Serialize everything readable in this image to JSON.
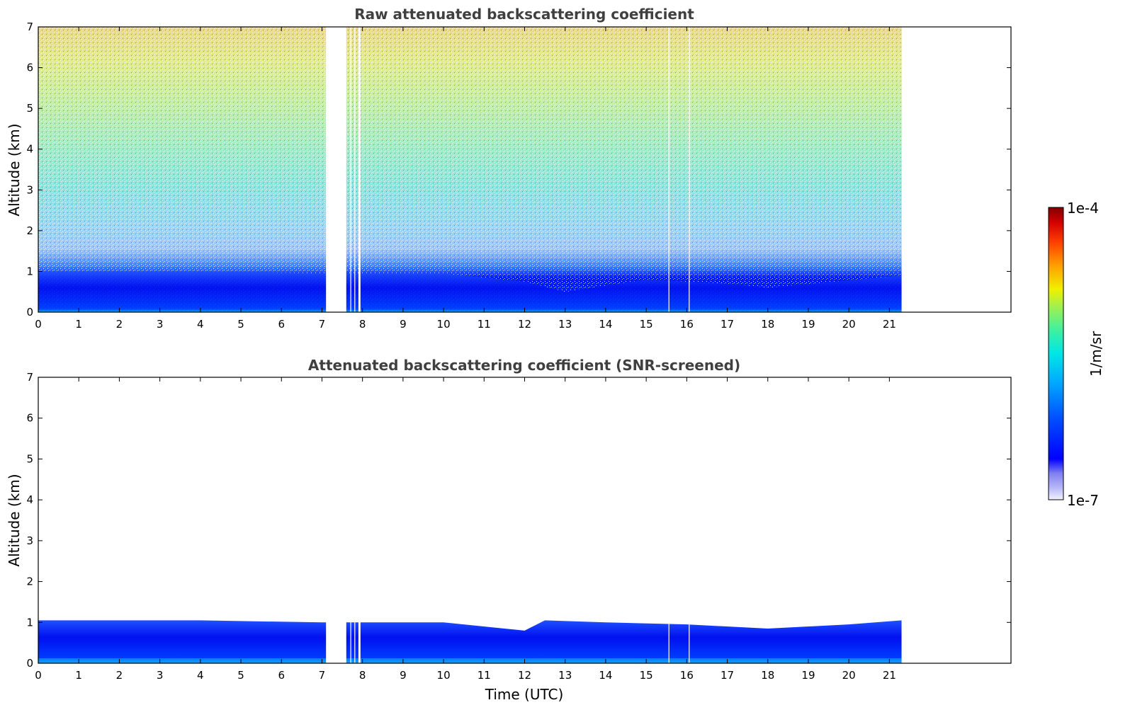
{
  "chart_data": [
    {
      "type": "heatmap",
      "title": "Raw attenuated backscattering coefficient",
      "xlabel": "",
      "ylabel": "Altitude (km)",
      "xlim": [
        0,
        24
      ],
      "ylim": [
        0,
        7
      ],
      "xticks": [
        0,
        1,
        2,
        3,
        4,
        5,
        6,
        7,
        8,
        9,
        10,
        11,
        12,
        13,
        14,
        15,
        16,
        17,
        18,
        19,
        20,
        21
      ],
      "yticks": [
        0,
        1,
        2,
        3,
        4,
        5,
        6,
        7
      ],
      "data_extent_hours": [
        0,
        21.3
      ],
      "gaps_hours": [
        [
          7.1,
          7.6
        ],
        [
          7.7,
          7.72
        ],
        [
          7.8,
          7.82
        ],
        [
          7.9,
          7.95
        ],
        [
          15.55,
          15.57
        ],
        [
          16.05,
          16.07
        ]
      ],
      "boundary_layer_top_km": [
        {
          "time": 0,
          "top": 1.0
        },
        {
          "time": 4,
          "top": 1.0
        },
        {
          "time": 7,
          "top": 0.95
        },
        {
          "time": 10,
          "top": 0.95
        },
        {
          "time": 12,
          "top": 0.75
        },
        {
          "time": 13,
          "top": 0.5
        },
        {
          "time": 15,
          "top": 0.8
        },
        {
          "time": 17,
          "top": 0.7
        },
        {
          "time": 18,
          "top": 0.6
        },
        {
          "time": 21.3,
          "top": 0.9
        }
      ],
      "grid": false
    },
    {
      "type": "heatmap",
      "title": "Attenuated backscattering coefficient (SNR-screened)",
      "xlabel": "Time (UTC)",
      "ylabel": "Altitude (km)",
      "xlim": [
        0,
        24
      ],
      "ylim": [
        0,
        7
      ],
      "xticks": [
        0,
        1,
        2,
        3,
        4,
        5,
        6,
        7,
        8,
        9,
        10,
        11,
        12,
        13,
        14,
        15,
        16,
        17,
        18,
        19,
        20,
        21
      ],
      "yticks": [
        0,
        1,
        2,
        3,
        4,
        5,
        6,
        7
      ],
      "data_extent_hours": [
        0,
        21.3
      ],
      "gaps_hours": [
        [
          7.1,
          7.6
        ],
        [
          7.7,
          7.72
        ],
        [
          7.8,
          7.82
        ],
        [
          7.9,
          7.95
        ],
        [
          15.55,
          15.57
        ],
        [
          16.05,
          16.07
        ]
      ],
      "layer_top_km": [
        {
          "time": 0,
          "top": 1.05
        },
        {
          "time": 2,
          "top": 1.05
        },
        {
          "time": 4,
          "top": 1.05
        },
        {
          "time": 7,
          "top": 1.0
        },
        {
          "time": 10,
          "top": 1.0
        },
        {
          "time": 11.5,
          "top": 0.85
        },
        {
          "time": 12,
          "top": 0.8
        },
        {
          "time": 12.5,
          "top": 1.05
        },
        {
          "time": 14,
          "top": 1.0
        },
        {
          "time": 16,
          "top": 0.95
        },
        {
          "time": 18,
          "top": 0.85
        },
        {
          "time": 20,
          "top": 0.95
        },
        {
          "time": 21.3,
          "top": 1.05
        }
      ],
      "grid": false
    }
  ],
  "colorbar": {
    "label": "1/m/sr",
    "min_label": "1e-7",
    "max_label": "1e-4",
    "scale": "log",
    "colormap": "jet",
    "colors": [
      "#f2f2ff",
      "#b8b8f8",
      "#8080f0",
      "#0000ff",
      "#0050ff",
      "#00a0ff",
      "#00e0e0",
      "#40f0a0",
      "#a0f050",
      "#f0f000",
      "#ffa000",
      "#ff4000",
      "#e00000",
      "#800000"
    ]
  }
}
